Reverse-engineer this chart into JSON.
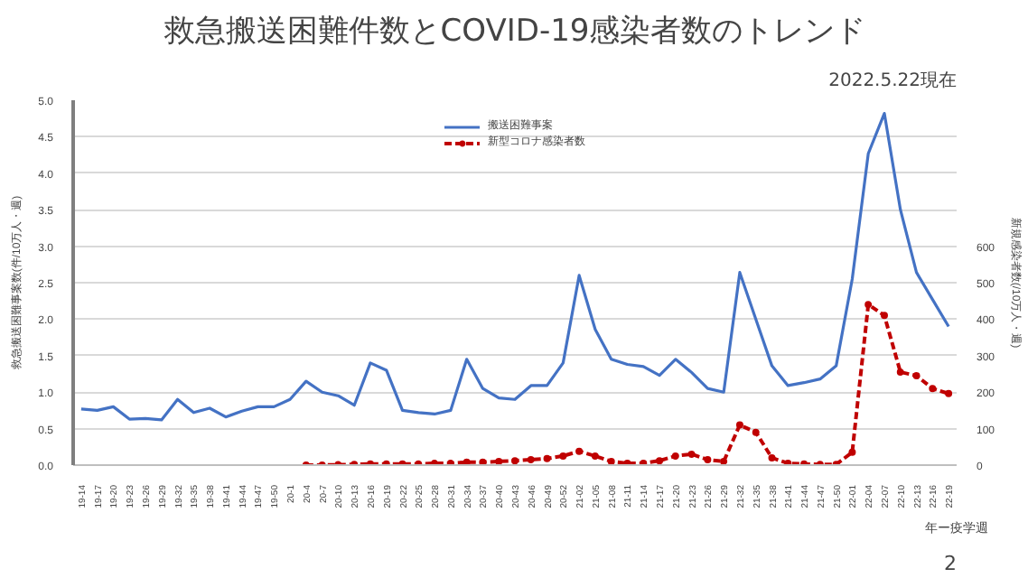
{
  "chart_data": {
    "type": "line",
    "title": "救急搬送困難件数とCOVID-19感染者数のトレンド",
    "subtitle": "2022.5.22現在",
    "ylabel": "救急搬送困難事案数(件/10万人・週)",
    "y2label": "新規感染者数(/10万人・週)",
    "xlabel": "年ー疫学週",
    "categories": [
      "19-14",
      "19-17",
      "19-20",
      "19-23",
      "19-26",
      "19-29",
      "19-32",
      "19-35",
      "19-38",
      "19-41",
      "19-44",
      "19-47",
      "19-50",
      "20-1",
      "20-4",
      "20-7",
      "20-10",
      "20-13",
      "20-16",
      "20-19",
      "20-22",
      "20-25",
      "20-28",
      "20-31",
      "20-34",
      "20-37",
      "20-40",
      "20-43",
      "20-46",
      "20-49",
      "20-52",
      "21-02",
      "21-05",
      "21-08",
      "21-11",
      "21-14",
      "21-17",
      "21-20",
      "21-23",
      "21-26",
      "21-29",
      "21-32",
      "21-35",
      "21-38",
      "21-41",
      "21-44",
      "21-47",
      "21-50",
      "22-01",
      "22-04",
      "22-07",
      "22-10",
      "22-13",
      "22-16",
      "22-19"
    ],
    "series": [
      {
        "name": "搬送困難事案",
        "color": "#4472c4",
        "line_style": "solid",
        "marker": "none",
        "values": [
          0.77,
          0.75,
          0.8,
          0.63,
          0.64,
          0.62,
          0.9,
          0.72,
          0.78,
          0.66,
          0.74,
          0.8,
          0.8,
          0.9,
          1.15,
          1.0,
          0.95,
          0.82,
          1.4,
          1.3,
          0.75,
          0.72,
          0.7,
          0.75,
          1.45,
          1.05,
          0.92,
          0.9,
          1.09,
          1.09,
          1.4,
          2.6,
          1.86,
          1.45,
          1.38,
          1.35,
          1.23,
          1.45,
          1.27,
          1.05,
          1.0,
          2.64,
          2.0,
          1.36,
          1.09,
          1.13,
          1.18,
          1.36,
          2.55,
          4.27,
          4.82,
          3.5,
          2.64,
          2.27,
          1.9
        ]
      },
      {
        "name": "新型コロナ感染者数",
        "color": "#c00000",
        "axis": "y2",
        "line_style": "dashed",
        "marker": "circle",
        "values": [
          null,
          null,
          null,
          null,
          null,
          null,
          null,
          null,
          null,
          null,
          null,
          null,
          null,
          null,
          0,
          0,
          1,
          2,
          3,
          3,
          3,
          3,
          5,
          5,
          8,
          8,
          10,
          12,
          15,
          18,
          25,
          38,
          25,
          10,
          5,
          5,
          12,
          25,
          30,
          15,
          10,
          110,
          90,
          20,
          5,
          3,
          2,
          2,
          35,
          440,
          410,
          255,
          245,
          210,
          196
        ]
      }
    ],
    "ylim": [
      0,
      5
    ],
    "yticks": [
      {
        "value": 0,
        "label": "0.0"
      },
      {
        "value": 0.5,
        "label": "0.5"
      },
      {
        "value": 1,
        "label": "1.0"
      },
      {
        "value": 1.5,
        "label": "1.5"
      },
      {
        "value": 2,
        "label": "2.0"
      },
      {
        "value": 2.5,
        "label": "2.5"
      },
      {
        "value": 3,
        "label": "3.0"
      },
      {
        "value": 3.5,
        "label": "3.5"
      },
      {
        "value": 4,
        "label": "4.0"
      },
      {
        "value": 4.5,
        "label": "4.5"
      },
      {
        "value": 5,
        "label": "5.0"
      }
    ],
    "y2lim": [
      0,
      1000
    ],
    "y2ticks": [
      0,
      100,
      200,
      300,
      400,
      500,
      600
    ],
    "grid": "y",
    "legend": "top",
    "annotations": [
      "2"
    ]
  }
}
